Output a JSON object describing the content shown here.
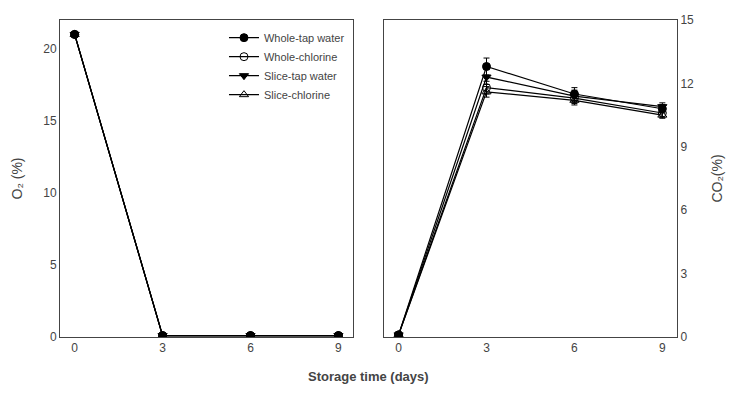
{
  "chart_data": [
    {
      "type": "line",
      "ylabel": "O₂ (%)",
      "xlabel": "Storage time (days)",
      "x": [
        0,
        3,
        6,
        9
      ],
      "xlim": [
        -0.5,
        9.5
      ],
      "xticks": [
        0,
        3,
        6,
        9
      ],
      "ylim": [
        0,
        22
      ],
      "yticks": [
        0,
        5,
        10,
        15,
        20
      ],
      "grid": false,
      "legend": "upper right",
      "series": [
        {
          "name": "Whole-tap water",
          "color": "#000000",
          "marker": "circle",
          "values": [
            21.0,
            0.1,
            0.1,
            0.1
          ],
          "errors": [
            0.05,
            0.05,
            0.05,
            0.05
          ]
        },
        {
          "name": "Whole-chlorine",
          "color": "#000000",
          "marker": "circle-open",
          "values": [
            21.0,
            0.1,
            0.1,
            0.1
          ],
          "errors": [
            0.05,
            0.05,
            0.05,
            0.05
          ]
        },
        {
          "name": "Slice-tap water",
          "color": "#000000",
          "marker": "triangle-down",
          "values": [
            21.0,
            0.1,
            0.1,
            0.1
          ],
          "errors": [
            0.05,
            0.05,
            0.05,
            0.05
          ]
        },
        {
          "name": "Slice-chlorine",
          "color": "#000000",
          "marker": "triangle-up-open",
          "values": [
            21.0,
            0.1,
            0.1,
            0.1
          ],
          "errors": [
            0.05,
            0.05,
            0.05,
            0.05
          ]
        }
      ]
    },
    {
      "type": "line",
      "ylabel": "CO₂(%)",
      "x": [
        0,
        3,
        6,
        9
      ],
      "xlim": [
        -0.5,
        9.5
      ],
      "xticks": [
        0,
        3,
        6,
        9
      ],
      "ylim": [
        0,
        15
      ],
      "yticks": [
        0,
        3,
        6,
        9,
        12,
        15
      ],
      "grid": false,
      "series": [
        {
          "color": "#000000",
          "marker": "circle",
          "values": [
            0.1,
            12.8,
            11.5,
            10.8
          ],
          "errors": [
            0.05,
            0.4,
            0.3,
            0.2
          ]
        },
        {
          "color": "#000000",
          "marker": "circle-open",
          "values": [
            0.1,
            11.8,
            11.3,
            10.6
          ],
          "errors": [
            0.05,
            0.3,
            0.25,
            0.2
          ]
        },
        {
          "color": "#000000",
          "marker": "triangle-down",
          "values": [
            0.1,
            12.3,
            11.4,
            10.9
          ],
          "errors": [
            0.05,
            0.35,
            0.28,
            0.18
          ]
        },
        {
          "color": "#000000",
          "marker": "triangle-up-open",
          "values": [
            0.1,
            11.6,
            11.2,
            10.5
          ],
          "errors": [
            0.05,
            0.25,
            0.22,
            0.15
          ]
        }
      ]
    }
  ]
}
